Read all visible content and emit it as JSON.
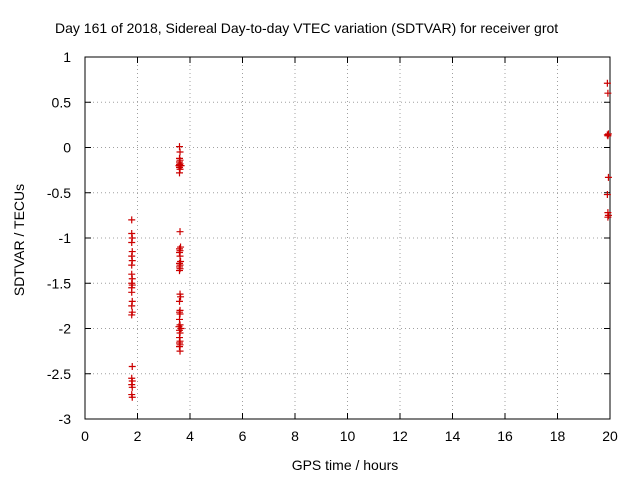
{
  "chart_data": {
    "type": "scatter",
    "title": "Day 161 of 2018, Sidereal Day-to-day VTEC variation (SDTVAR) for receiver grot",
    "xlabel": "GPS time / hours",
    "ylabel": "SDTVAR / TECUs",
    "xlim": [
      0,
      20
    ],
    "ylim": [
      -3,
      1
    ],
    "xticks": [
      "0",
      "2",
      "4",
      "6",
      "8",
      "10",
      "12",
      "14",
      "16",
      "18",
      "20"
    ],
    "yticks": [
      "1",
      "0.5",
      "0",
      "-0.5",
      "-1",
      "-1.5",
      "-2",
      "-2.5",
      "-3"
    ],
    "grid": true,
    "marker": "+",
    "color": "#cc0000",
    "series": [
      {
        "name": "SDTVAR",
        "x": [
          1.78,
          1.78,
          1.8,
          1.78,
          1.8,
          1.78,
          1.8,
          1.78,
          1.78,
          1.8,
          1.78,
          1.8,
          1.78,
          1.78,
          1.8,
          1.78,
          1.8,
          1.78,
          1.8,
          1.78,
          1.8,
          1.78,
          1.8,
          1.78,
          1.8,
          3.6,
          3.62,
          3.6,
          3.62,
          3.6,
          3.62,
          3.6,
          3.62,
          3.58,
          3.66,
          3.6,
          3.62,
          3.6,
          3.62,
          3.64,
          3.6,
          3.62,
          3.6,
          3.62,
          3.64,
          3.6,
          3.62,
          3.6,
          3.62,
          3.6,
          3.62,
          3.64,
          3.6,
          3.62,
          3.6,
          3.62,
          3.6,
          3.62,
          3.58,
          3.66,
          3.6,
          3.62,
          3.6,
          3.62,
          3.6,
          3.62,
          3.6,
          3.62,
          19.9,
          19.92,
          19.94,
          19.9,
          19.92,
          19.94,
          19.9,
          19.92,
          19.94,
          19.92
        ],
        "y": [
          -0.8,
          -0.95,
          -1.0,
          -1.05,
          -1.15,
          -1.2,
          -1.25,
          -1.3,
          -1.4,
          -1.45,
          -1.5,
          -1.52,
          -1.55,
          -1.6,
          -1.7,
          -1.75,
          -1.82,
          -1.85,
          -2.42,
          -2.55,
          -2.58,
          -2.62,
          -2.65,
          -2.73,
          -2.76,
          0.01,
          -0.05,
          -0.12,
          -0.14,
          -0.16,
          -0.18,
          -0.19,
          -0.2,
          -0.2,
          -0.2,
          -0.22,
          -0.24,
          -0.28,
          -0.93,
          -1.1,
          -1.12,
          -1.14,
          -1.16,
          -1.2,
          -1.26,
          -1.28,
          -1.3,
          -1.32,
          -1.34,
          -1.36,
          -1.62,
          -1.65,
          -1.7,
          -1.8,
          -1.82,
          -1.84,
          -1.9,
          -1.96,
          -1.98,
          -2.0,
          -2.02,
          -2.05,
          -2.1,
          -2.14,
          -2.16,
          -2.18,
          -2.2,
          -2.25,
          0.71,
          0.6,
          0.15,
          0.14,
          0.13,
          -0.33,
          -0.52,
          -0.72,
          -0.75,
          -0.77
        ]
      }
    ]
  }
}
